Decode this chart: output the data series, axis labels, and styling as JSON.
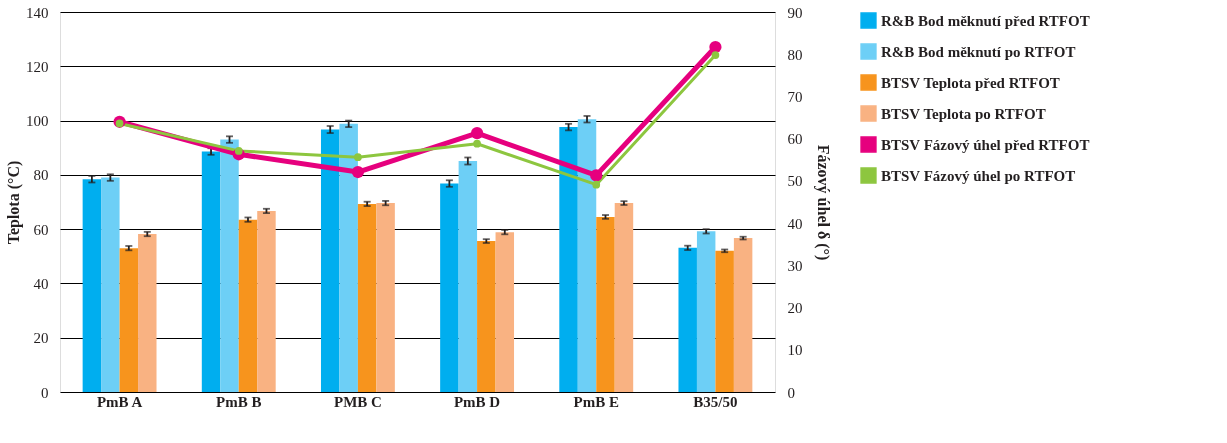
{
  "chart_data": {
    "type": "bar",
    "ylabel": "Teplota (°C)",
    "y2label": "Fázový úhel δ (°)",
    "categories": [
      "PmB A",
      "PmB B",
      "PMB C",
      "PmB D",
      "PmB E",
      "B35/50"
    ],
    "series": [
      {
        "name": "R&B Bod měknutí před RTFOT",
        "color": "#00aeef",
        "values": [
          78.4,
          88.6,
          96.7,
          76.8,
          97.6,
          53.1
        ],
        "errors": [
          1.2,
          1.2,
          1.3,
          1.2,
          1.2,
          0.8
        ]
      },
      {
        "name": "R&B Bod měknutí po RTFOT",
        "color": "#6dcff6",
        "values": [
          79.0,
          93.0,
          98.8,
          85.1,
          100.5,
          59.2
        ],
        "errors": [
          1.2,
          1.2,
          1.2,
          1.3,
          1.2,
          0.8
        ]
      },
      {
        "name": "BTSV Teplota před RTFOT",
        "color": "#f7941d",
        "values": [
          53.0,
          63.5,
          69.3,
          55.6,
          64.5,
          52.0
        ],
        "errors": [
          0.8,
          0.8,
          0.8,
          0.7,
          0.7,
          0.5
        ]
      },
      {
        "name": "BTSV Teplota po RTFOT",
        "color": "#f9b282",
        "values": [
          58.2,
          66.7,
          69.6,
          58.9,
          69.6,
          56.7
        ],
        "errors": [
          0.8,
          0.8,
          0.8,
          0.8,
          0.7,
          0.5
        ]
      },
      {
        "name": "BTSV Fázový úhel před RTFOT",
        "color": "#e6007e",
        "type": "line",
        "axis": "y2",
        "values": [
          64.0,
          56.3,
          52.1,
          61.3,
          51.3,
          81.7
        ]
      },
      {
        "name": "BTSV Fázový úhel po RTFOT",
        "color": "#8dc63f",
        "type": "line",
        "axis": "y2",
        "values": [
          63.6,
          57.1,
          55.6,
          58.8,
          49.1,
          79.8
        ]
      }
    ],
    "ylim": [
      0,
      140
    ],
    "yticks": [
      0,
      20,
      40,
      60,
      80,
      100,
      120,
      140
    ],
    "y2lim": [
      0,
      90
    ],
    "y2ticks": [
      0,
      10,
      20,
      30,
      40,
      50,
      60,
      70,
      80,
      90
    ],
    "grid": "y",
    "legend": "right",
    "marker": "circle",
    "line_style": "solid"
  }
}
